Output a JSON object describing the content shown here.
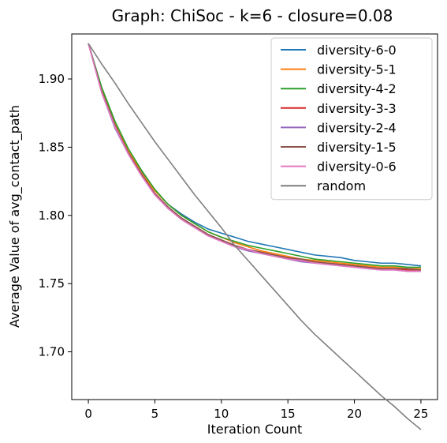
{
  "chart_data": {
    "type": "line",
    "title": "Graph: ChiSoc - k=6 - closure=0.08",
    "xlabel": "Iteration Count",
    "ylabel": "Average Value of avg_contact_path",
    "xlim": [
      -1.25,
      26.25
    ],
    "ylim": [
      1.665,
      1.933
    ],
    "xticks": [
      0,
      5,
      10,
      15,
      20,
      25
    ],
    "yticks": [
      1.7,
      1.75,
      1.8,
      1.85,
      1.9
    ],
    "xtick_labels": [
      "0",
      "5",
      "10",
      "15",
      "20",
      "25"
    ],
    "ytick_labels": [
      "1.70",
      "1.75",
      "1.80",
      "1.85",
      "1.90"
    ],
    "grid": false,
    "legend_position": "top-right",
    "x": [
      0,
      1,
      2,
      3,
      4,
      5,
      6,
      7,
      8,
      9,
      10,
      11,
      12,
      13,
      14,
      15,
      16,
      17,
      18,
      19,
      20,
      21,
      22,
      23,
      24,
      25
    ],
    "series": [
      {
        "name": "diversity-6-0",
        "color": "#1f77b4",
        "values": [
          1.926,
          1.893,
          1.868,
          1.848,
          1.832,
          1.818,
          1.808,
          1.801,
          1.795,
          1.79,
          1.787,
          1.784,
          1.781,
          1.779,
          1.777,
          1.775,
          1.773,
          1.771,
          1.77,
          1.769,
          1.767,
          1.766,
          1.765,
          1.765,
          1.764,
          1.763
        ]
      },
      {
        "name": "diversity-5-1",
        "color": "#ff7f0e",
        "values": [
          1.926,
          1.892,
          1.867,
          1.848,
          1.831,
          1.818,
          1.808,
          1.8,
          1.794,
          1.788,
          1.784,
          1.78,
          1.777,
          1.774,
          1.772,
          1.77,
          1.768,
          1.767,
          1.766,
          1.765,
          1.764,
          1.763,
          1.762,
          1.762,
          1.761,
          1.761
        ]
      },
      {
        "name": "diversity-4-2",
        "color": "#2ca02c",
        "values": [
          1.926,
          1.894,
          1.869,
          1.849,
          1.833,
          1.819,
          1.808,
          1.8,
          1.794,
          1.788,
          1.784,
          1.781,
          1.778,
          1.776,
          1.774,
          1.772,
          1.77,
          1.768,
          1.767,
          1.766,
          1.765,
          1.764,
          1.763,
          1.763,
          1.762,
          1.762
        ]
      },
      {
        "name": "diversity-3-3",
        "color": "#d62728",
        "values": [
          1.926,
          1.891,
          1.866,
          1.846,
          1.83,
          1.816,
          1.806,
          1.798,
          1.792,
          1.786,
          1.782,
          1.778,
          1.775,
          1.773,
          1.771,
          1.769,
          1.767,
          1.766,
          1.765,
          1.764,
          1.763,
          1.762,
          1.761,
          1.761,
          1.76,
          1.76
        ]
      },
      {
        "name": "diversity-2-4",
        "color": "#9467bd",
        "values": [
          1.926,
          1.89,
          1.864,
          1.845,
          1.829,
          1.815,
          1.805,
          1.797,
          1.791,
          1.785,
          1.781,
          1.777,
          1.774,
          1.772,
          1.77,
          1.768,
          1.766,
          1.765,
          1.764,
          1.763,
          1.762,
          1.761,
          1.76,
          1.76,
          1.759,
          1.759
        ]
      },
      {
        "name": "diversity-1-5",
        "color": "#8c564b",
        "values": [
          1.926,
          1.891,
          1.866,
          1.846,
          1.83,
          1.816,
          1.806,
          1.798,
          1.792,
          1.786,
          1.782,
          1.778,
          1.775,
          1.773,
          1.771,
          1.769,
          1.768,
          1.766,
          1.765,
          1.764,
          1.763,
          1.762,
          1.761,
          1.761,
          1.761,
          1.76
        ]
      },
      {
        "name": "diversity-0-6",
        "color": "#e377c2",
        "values": [
          1.926,
          1.89,
          1.865,
          1.845,
          1.829,
          1.815,
          1.805,
          1.797,
          1.791,
          1.785,
          1.781,
          1.777,
          1.775,
          1.772,
          1.77,
          1.768,
          1.767,
          1.765,
          1.764,
          1.763,
          1.762,
          1.761,
          1.76,
          1.76,
          1.759,
          1.759
        ]
      },
      {
        "name": "random",
        "color": "#7f7f7f",
        "values": [
          1.926,
          1.911,
          1.897,
          1.882,
          1.868,
          1.854,
          1.841,
          1.828,
          1.815,
          1.803,
          1.791,
          1.778,
          1.767,
          1.756,
          1.745,
          1.734,
          1.723,
          1.713,
          1.704,
          1.695,
          1.686,
          1.677,
          1.668,
          1.66,
          1.651,
          1.643
        ]
      }
    ]
  }
}
